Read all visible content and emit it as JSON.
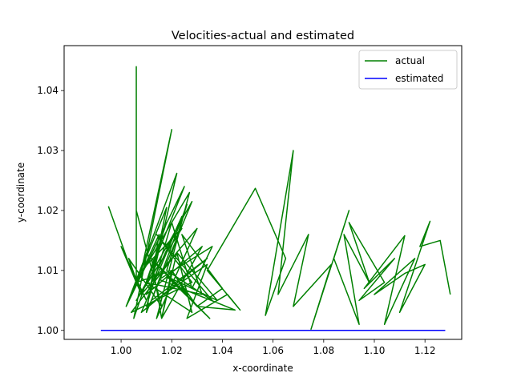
{
  "chart_data": {
    "type": "line",
    "title": "Velocities-actual and estimated",
    "xlabel": "x-coordinate",
    "ylabel": "y-coordinate",
    "xlim": [
      0.9775,
      1.1345
    ],
    "ylim": [
      0.9985,
      1.0475
    ],
    "xticks": [
      1.0,
      1.02,
      1.04,
      1.06,
      1.08,
      1.1,
      1.12
    ],
    "xtick_labels": [
      "1.00",
      "1.02",
      "1.04",
      "1.06",
      "1.08",
      "1.10",
      "1.12"
    ],
    "yticks": [
      1.0,
      1.01,
      1.02,
      1.03,
      1.04
    ],
    "ytick_labels": [
      "1.00",
      "1.01",
      "1.02",
      "1.03",
      "1.04"
    ],
    "grid": false,
    "legend_position": "top-right",
    "series": [
      {
        "name": "actual",
        "color": "#008000",
        "x": [
          0.995,
          1.004,
          1.01,
          1.0,
          1.008,
          1.003,
          1.016,
          1.006,
          1.006,
          1.006,
          1.012,
          1.002,
          1.018,
          1.005,
          1.02,
          1.008,
          1.024,
          1.006,
          1.028,
          1.01,
          1.015,
          1.004,
          1.022,
          1.012,
          1.018,
          1.002,
          1.025,
          1.008,
          1.03,
          1.014,
          1.027,
          1.006,
          1.02,
          1.016,
          1.032,
          1.01,
          1.024,
          1.008,
          1.034,
          1.012,
          1.026,
          1.018,
          1.036,
          1.014,
          1.028,
          1.004,
          1.022,
          1.016,
          1.012,
          1.026,
          1.02,
          1.03,
          1.014,
          1.035,
          1.018,
          1.038,
          1.022,
          1.028,
          1.01,
          1.032,
          1.024,
          1.04,
          1.03,
          1.045,
          1.015,
          1.036,
          1.028,
          1.02,
          1.01,
          1.034,
          1.026,
          1.042,
          1.047,
          1.034,
          1.053,
          1.065,
          1.057,
          1.068,
          1.062,
          1.074,
          1.068,
          1.083,
          1.075,
          1.09,
          1.084,
          1.094,
          1.088,
          1.098,
          1.09,
          1.104,
          1.094,
          1.108,
          1.096,
          1.112,
          1.104,
          1.116,
          1.1,
          1.112,
          1.12,
          1.11,
          1.122,
          1.118,
          1.126,
          1.13
        ],
        "y": [
          1.0207,
          1.01,
          1.005,
          1.014,
          1.006,
          1.012,
          1.004,
          1.02,
          1.044,
          1.008,
          1.015,
          1.004,
          1.018,
          1.002,
          1.0335,
          1.01,
          1.017,
          1.005,
          1.0215,
          1.003,
          1.016,
          1.006,
          1.0262,
          1.008,
          1.0205,
          1.004,
          1.024,
          1.006,
          1.017,
          1.002,
          1.023,
          1.008,
          1.01,
          1.002,
          1.014,
          1.006,
          1.019,
          1.003,
          1.012,
          1.005,
          1.021,
          1.01,
          1.005,
          1.016,
          1.008,
          1.003,
          1.013,
          1.002,
          1.012,
          1.006,
          1.01,
          1.004,
          1.011,
          1.002,
          1.009,
          1.005,
          1.013,
          1.003,
          1.008,
          1.006,
          1.016,
          1.007,
          1.004,
          1.0034,
          1.0085,
          1.014,
          1.007,
          1.018,
          1.004,
          1.011,
          1.002,
          1.006,
          1.0034,
          1.01,
          1.0237,
          1.012,
          1.0025,
          1.03,
          1.006,
          1.016,
          1.004,
          1.011,
          1.0002,
          1.02,
          1.012,
          1.001,
          1.016,
          1.008,
          1.018,
          1.008,
          1.005,
          1.012,
          1.007,
          1.0158,
          1.001,
          1.012,
          1.006,
          1.0095,
          1.011,
          1.003,
          1.0182,
          1.014,
          1.015,
          1.006
        ]
      },
      {
        "name": "estimated",
        "color": "#0000ff",
        "x": [
          0.992,
          1.128
        ],
        "y": [
          1.0,
          1.0
        ]
      }
    ]
  }
}
